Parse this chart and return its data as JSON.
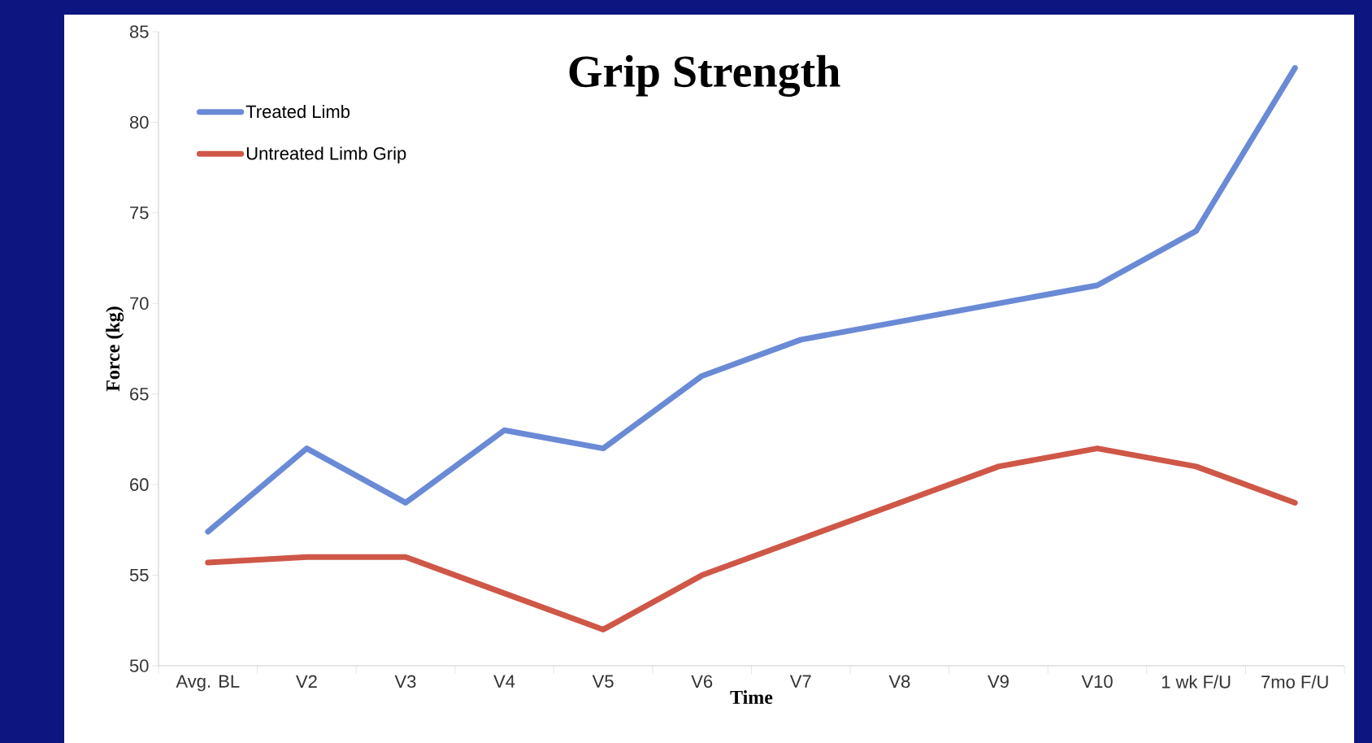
{
  "chart_data": {
    "type": "line",
    "title": "Grip Strength",
    "xlabel": "Time",
    "ylabel": "Force (kg)",
    "categories": [
      "Avg. BL",
      "V2",
      "V3",
      "V4",
      "V5",
      "V6",
      "V7",
      "V8",
      "V9",
      "V10",
      "1 wk F/U",
      "7mo F/U"
    ],
    "series": [
      {
        "name": "Treated Limb",
        "color": "#6a8ad6",
        "values": [
          57.4,
          62,
          59,
          63,
          62,
          66,
          68,
          69,
          70,
          71,
          74,
          83
        ]
      },
      {
        "name": "Untreated Limb Grip",
        "color": "#cf5748",
        "values": [
          55.7,
          56,
          56,
          54,
          52,
          55,
          57,
          59,
          61,
          62,
          61,
          59
        ]
      }
    ],
    "ylim": [
      50,
      85
    ],
    "yticks": [
      50,
      55,
      60,
      65,
      70,
      75,
      80,
      85
    ],
    "grid": false,
    "legend": "top left",
    "marker": "none",
    "line_style": "solid"
  }
}
